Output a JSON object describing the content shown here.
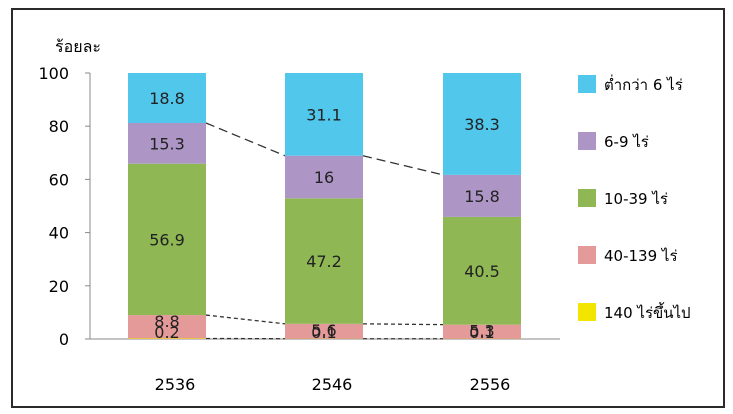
{
  "chart_data": {
    "type": "bar",
    "stacked": true,
    "ylabel": "ร้อยละ",
    "ylim": [
      0,
      100
    ],
    "yticks": [
      0,
      20,
      40,
      60,
      80,
      100
    ],
    "categories": [
      "2536",
      "2546",
      "2556"
    ],
    "series": [
      {
        "name": "140 ไร่ขึ้นไป",
        "color": "#f2e600",
        "values": [
          0.2,
          0.1,
          0.1
        ]
      },
      {
        "name": "40-139 ไร่",
        "color": "#e39a98",
        "values": [
          8.8,
          5.6,
          5.3
        ]
      },
      {
        "name": "10-39 ไร่",
        "color": "#8fb855",
        "values": [
          56.9,
          47.2,
          40.5
        ]
      },
      {
        "name": "6-9 ไร่",
        "color": "#ad96c6",
        "values": [
          15.3,
          16.0,
          15.8
        ]
      },
      {
        "name": "ต่ำกว่า 6 ไร่",
        "color": "#52c7ec",
        "values": [
          18.8,
          31.1,
          38.3
        ]
      }
    ],
    "grid": false,
    "legend_position": "right"
  }
}
